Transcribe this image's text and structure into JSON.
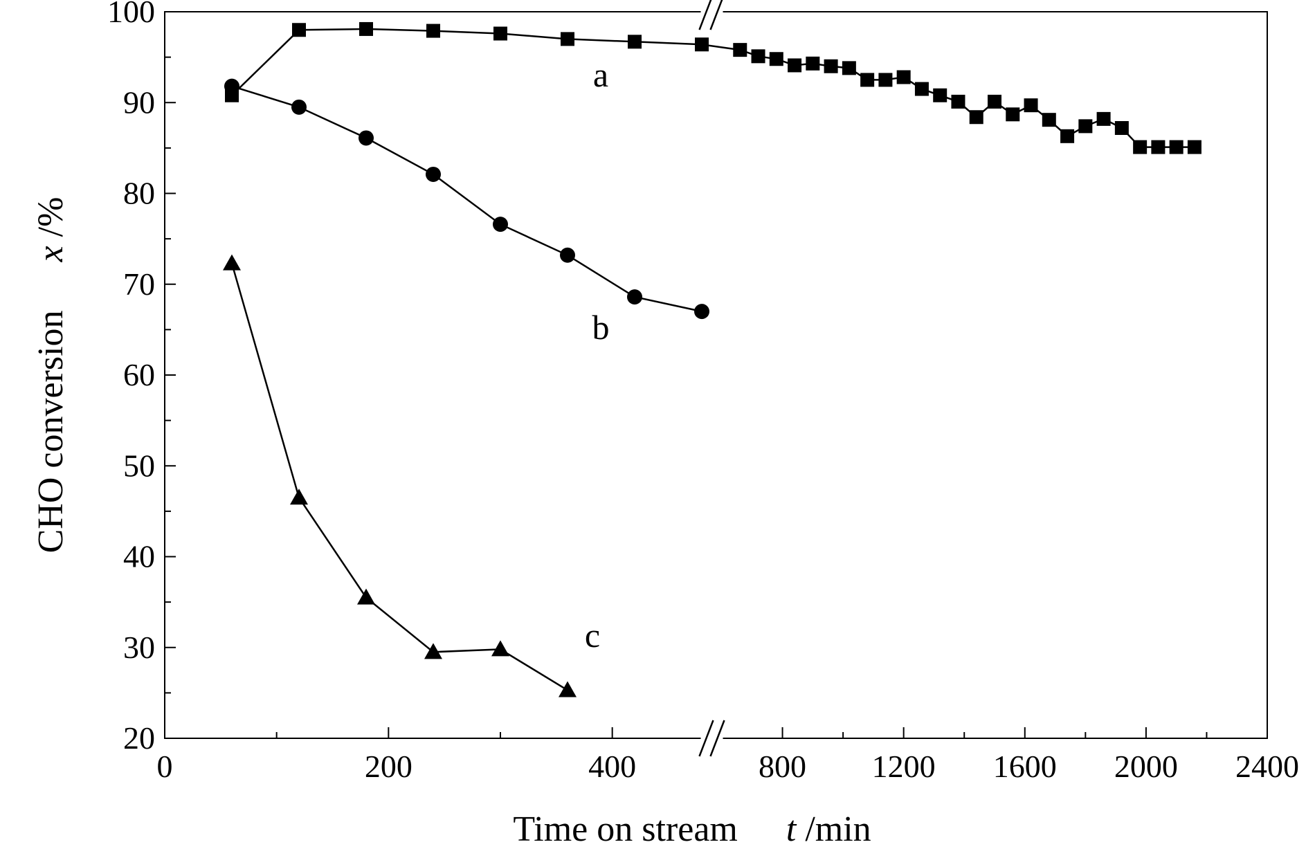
{
  "chart_data": {
    "type": "line",
    "title": "",
    "xlabel": "Time on stream",
    "xlabel_var": "t",
    "xlabel_unit": " /min",
    "ylabel": "CHO conversion",
    "ylabel_var": "x",
    "ylabel_unit": " /%",
    "ylim": [
      20,
      100
    ],
    "yticks": [
      "20",
      "30",
      "40",
      "50",
      "60",
      "70",
      "80",
      "90",
      "100"
    ],
    "x_axis_broken": true,
    "x_segments": [
      {
        "xlim": [
          0,
          480
        ],
        "ticks": [
          "0",
          "200",
          "400"
        ],
        "tick_values": [
          0,
          200,
          400
        ]
      },
      {
        "xlim": [
          600,
          2400
        ],
        "ticks": [
          "800",
          "1200",
          "1600",
          "2000",
          "2400"
        ],
        "tick_values": [
          800,
          1200,
          1600,
          2000,
          2400
        ]
      }
    ],
    "series": [
      {
        "name": "a",
        "marker": "square",
        "x": [
          60,
          120,
          180,
          240,
          300,
          360,
          420,
          480,
          660,
          720,
          780,
          840,
          900,
          960,
          1020,
          1080,
          1140,
          1200,
          1260,
          1320,
          1380,
          1440,
          1500,
          1560,
          1620,
          1680,
          1740,
          1800,
          1860,
          1920,
          1980,
          2040,
          2100,
          2160
        ],
        "values": [
          90.8,
          98.0,
          98.1,
          97.9,
          97.6,
          97.0,
          96.7,
          96.4,
          95.8,
          95.1,
          94.8,
          94.1,
          94.3,
          94.0,
          93.8,
          92.5,
          92.5,
          92.8,
          91.5,
          90.8,
          90.1,
          88.4,
          90.1,
          88.7,
          89.7,
          88.1,
          86.3,
          87.4,
          88.2,
          87.2,
          85.1,
          85.1,
          85.1,
          85.1
        ]
      },
      {
        "name": "b",
        "marker": "circle",
        "x": [
          60,
          120,
          180,
          240,
          300,
          360,
          420,
          480
        ],
        "values": [
          91.8,
          89.5,
          86.1,
          82.1,
          76.6,
          73.2,
          68.6,
          67.0
        ]
      },
      {
        "name": "c",
        "marker": "triangle",
        "x": [
          60,
          120,
          180,
          240,
          300,
          360
        ],
        "values": [
          72.3,
          46.5,
          35.5,
          29.5,
          29.8,
          25.3
        ]
      }
    ]
  }
}
